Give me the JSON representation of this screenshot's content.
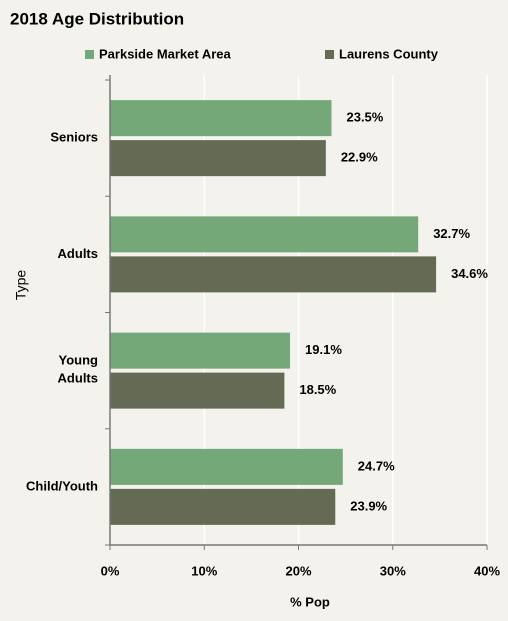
{
  "chart_data": {
    "type": "hbar",
    "title": "2018 Age Distribution",
    "categories": [
      "Seniors",
      "Adults",
      "Young Adults",
      "Child/Youth"
    ],
    "series": [
      {
        "name": "Parkside Market Area",
        "color": "#75a878",
        "values": [
          23.5,
          32.7,
          19.1,
          24.7
        ],
        "value_labels": [
          "23.5%",
          "32.7%",
          "19.1%",
          "24.7%"
        ]
      },
      {
        "name": "Laurens County",
        "color": "#646a54",
        "values": [
          22.9,
          34.6,
          18.5,
          23.9
        ],
        "value_labels": [
          "22.9%",
          "34.6%",
          "18.5%",
          "23.9%"
        ]
      }
    ],
    "xlabel": "% Pop",
    "ylabel": "Type",
    "xlim": [
      0,
      40
    ],
    "xticks": [
      {
        "value": 0,
        "label": "0%"
      },
      {
        "value": 10,
        "label": "10%"
      },
      {
        "value": 20,
        "label": "20%"
      },
      {
        "value": 30,
        "label": "30%"
      },
      {
        "value": 40,
        "label": "40%"
      }
    ],
    "grid": true,
    "legend": "top"
  }
}
